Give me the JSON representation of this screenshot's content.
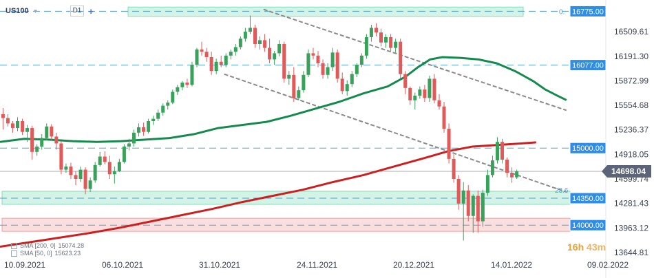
{
  "toolbar": {
    "symbol": "US100",
    "period": "D1"
  },
  "countdown": {
    "hours": "16",
    "hours_unit": "h",
    "minutes": "43",
    "minutes_unit": "m"
  },
  "legend": [
    {
      "label": "SMA [200, 0]",
      "value": "15074.28"
    },
    {
      "label": "SMA [50, 0]",
      "value": "15623.23"
    }
  ],
  "colors": {
    "bull": "#3aa15b",
    "bear": "#e05a5a",
    "sma200": "#cc1f1f",
    "sma50": "#158a4e",
    "channel": "#8a8a8a",
    "level_line": "#4f9fd8",
    "level_label_bg": "#2e8de6",
    "current_price_bg": "#5b6478",
    "zone_green": "#7fdcb8",
    "zone_red": "#f3a0a0",
    "fib": "#4f9fd8"
  },
  "chart_data": {
    "type": "candlestick",
    "y_ticks": [
      "16509.61",
      "16191.30",
      "15872.99",
      "15554.68",
      "15236.37",
      "14918.05",
      "14599.74",
      "14281.43",
      "13963.12",
      "13644.81"
    ],
    "x_ticks": [
      "10.09.2021",
      "06.10.2021",
      "31.10.2021",
      "24.11.2021",
      "20.12.2021",
      "14.01.2022",
      "09.02.2022"
    ],
    "ylim": [
      13600,
      16850
    ],
    "current_price": "14698.04",
    "fib_levels": [
      {
        "label": "0.",
        "price": 16775
      },
      {
        "label": "23.6",
        "price": 14455
      }
    ],
    "levels": [
      {
        "label": "16775.00",
        "price": 16775
      },
      {
        "label": "16077.00",
        "price": 16077
      },
      {
        "label": "15000.00",
        "price": 15000
      },
      {
        "label": "14350.00",
        "price": 14350
      },
      {
        "label": "14000.00",
        "price": 14000
      }
    ],
    "zones": [
      {
        "name": "resistance-zone",
        "from": 16710,
        "to": 16830,
        "color": "green"
      },
      {
        "name": "support-zone",
        "from": 14270,
        "to": 14440,
        "color": "green"
      },
      {
        "name": "demand-zone",
        "from": 13920,
        "to": 14090,
        "color": "red"
      }
    ],
    "channel": [
      {
        "x1": 0.435,
        "y1": 16800,
        "x2": 0.935,
        "y2": 15490
      },
      {
        "x1": 0.37,
        "y1": 15960,
        "x2": 0.935,
        "y2": 14430
      }
    ],
    "sma200": [
      [
        0,
        13720
      ],
      [
        0.05,
        13780
      ],
      [
        0.1,
        13840
      ],
      [
        0.15,
        13900
      ],
      [
        0.2,
        13970
      ],
      [
        0.25,
        14050
      ],
      [
        0.3,
        14130
      ],
      [
        0.35,
        14210
      ],
      [
        0.4,
        14300
      ],
      [
        0.45,
        14380
      ],
      [
        0.5,
        14460
      ],
      [
        0.55,
        14560
      ],
      [
        0.6,
        14650
      ],
      [
        0.65,
        14760
      ],
      [
        0.7,
        14870
      ],
      [
        0.74,
        14960
      ],
      [
        0.78,
        15020
      ],
      [
        0.82,
        15040
      ],
      [
        0.86,
        15060
      ],
      [
        0.885,
        15074
      ]
    ],
    "sma50": [
      [
        0,
        15080
      ],
      [
        0.04,
        15120
      ],
      [
        0.08,
        15110
      ],
      [
        0.12,
        15090
      ],
      [
        0.16,
        15080
      ],
      [
        0.2,
        15090
      ],
      [
        0.24,
        15110
      ],
      [
        0.28,
        15130
      ],
      [
        0.32,
        15180
      ],
      [
        0.36,
        15260
      ],
      [
        0.4,
        15300
      ],
      [
        0.44,
        15340
      ],
      [
        0.48,
        15420
      ],
      [
        0.52,
        15510
      ],
      [
        0.56,
        15600
      ],
      [
        0.6,
        15710
      ],
      [
        0.64,
        15800
      ],
      [
        0.67,
        15930
      ],
      [
        0.69,
        16050
      ],
      [
        0.71,
        16150
      ],
      [
        0.73,
        16180
      ],
      [
        0.76,
        16170
      ],
      [
        0.79,
        16150
      ],
      [
        0.82,
        16100
      ],
      [
        0.85,
        16000
      ],
      [
        0.88,
        15870
      ],
      [
        0.9,
        15760
      ],
      [
        0.92,
        15680
      ],
      [
        0.935,
        15623
      ]
    ],
    "candles": [
      [
        0.005,
        15440,
        15520,
        15240,
        15390
      ],
      [
        0.013,
        15390,
        15440,
        15280,
        15320
      ],
      [
        0.021,
        15320,
        15350,
        15200,
        15260
      ],
      [
        0.029,
        15260,
        15400,
        15220,
        15350
      ],
      [
        0.037,
        15350,
        15380,
        15170,
        15210
      ],
      [
        0.045,
        15210,
        15300,
        15080,
        15260
      ],
      [
        0.053,
        15260,
        15290,
        14850,
        14950
      ],
      [
        0.061,
        14950,
        15050,
        14900,
        15020
      ],
      [
        0.069,
        15020,
        15180,
        14980,
        15130
      ],
      [
        0.077,
        15130,
        15320,
        15100,
        15280
      ],
      [
        0.085,
        15280,
        15310,
        15100,
        15150
      ],
      [
        0.093,
        15150,
        15200,
        14980,
        15060
      ],
      [
        0.101,
        15060,
        15090,
        14660,
        14720
      ],
      [
        0.109,
        14720,
        14800,
        14680,
        14760
      ],
      [
        0.117,
        14760,
        14810,
        14600,
        14650
      ],
      [
        0.125,
        14650,
        14700,
        14520,
        14600
      ],
      [
        0.133,
        14600,
        14760,
        14560,
        14720
      ],
      [
        0.141,
        14720,
        14750,
        14400,
        14470
      ],
      [
        0.149,
        14470,
        14620,
        14430,
        14580
      ],
      [
        0.157,
        14580,
        14820,
        14550,
        14780
      ],
      [
        0.165,
        14780,
        14950,
        14760,
        14890
      ],
      [
        0.173,
        14890,
        14960,
        14790,
        14820
      ],
      [
        0.181,
        14820,
        14900,
        14600,
        14660
      ],
      [
        0.189,
        14660,
        14760,
        14540,
        14700
      ],
      [
        0.197,
        14700,
        14860,
        14690,
        14820
      ],
      [
        0.205,
        14820,
        15050,
        14800,
        15020
      ],
      [
        0.213,
        15020,
        15120,
        14970,
        15060
      ],
      [
        0.221,
        15060,
        15240,
        15020,
        15200
      ],
      [
        0.229,
        15200,
        15320,
        15150,
        15270
      ],
      [
        0.237,
        15270,
        15330,
        15160,
        15210
      ],
      [
        0.245,
        15210,
        15380,
        15190,
        15350
      ],
      [
        0.253,
        15350,
        15420,
        15300,
        15380
      ],
      [
        0.261,
        15380,
        15500,
        15350,
        15460
      ],
      [
        0.269,
        15460,
        15580,
        15420,
        15550
      ],
      [
        0.277,
        15550,
        15620,
        15500,
        15590
      ],
      [
        0.285,
        15590,
        15760,
        15570,
        15730
      ],
      [
        0.293,
        15730,
        15820,
        15690,
        15790
      ],
      [
        0.301,
        15790,
        15870,
        15750,
        15850
      ],
      [
        0.309,
        15850,
        15900,
        15780,
        15820
      ],
      [
        0.317,
        15820,
        16120,
        15800,
        16080
      ],
      [
        0.325,
        16080,
        16300,
        16050,
        16280
      ],
      [
        0.333,
        16280,
        16380,
        16200,
        16250
      ],
      [
        0.341,
        16250,
        16300,
        16120,
        16180
      ],
      [
        0.349,
        16180,
        16250,
        15950,
        16000
      ],
      [
        0.357,
        16000,
        16160,
        15960,
        16120
      ],
      [
        0.365,
        16120,
        16200,
        16050,
        16080
      ],
      [
        0.373,
        16080,
        16230,
        16050,
        16200
      ],
      [
        0.381,
        16200,
        16280,
        16150,
        16250
      ],
      [
        0.389,
        16250,
        16350,
        16200,
        16310
      ],
      [
        0.397,
        16310,
        16450,
        16280,
        16420
      ],
      [
        0.405,
        16420,
        16560,
        16380,
        16510
      ],
      [
        0.413,
        16510,
        16720,
        16480,
        16560
      ],
      [
        0.421,
        16560,
        16600,
        16300,
        16350
      ],
      [
        0.429,
        16350,
        16450,
        16280,
        16400
      ],
      [
        0.437,
        16400,
        16480,
        16250,
        16300
      ],
      [
        0.445,
        16300,
        16420,
        16100,
        16150
      ],
      [
        0.453,
        16150,
        16260,
        16080,
        16230
      ],
      [
        0.461,
        16230,
        16400,
        16190,
        16350
      ],
      [
        0.469,
        16350,
        16380,
        15850,
        15900
      ],
      [
        0.477,
        15900,
        16000,
        15820,
        15950
      ],
      [
        0.485,
        15950,
        16050,
        15600,
        15650
      ],
      [
        0.493,
        15650,
        15800,
        15620,
        15750
      ],
      [
        0.501,
        15750,
        16000,
        15720,
        15950
      ],
      [
        0.509,
        15950,
        16280,
        15920,
        16230
      ],
      [
        0.517,
        16230,
        16300,
        16150,
        16200
      ],
      [
        0.525,
        16200,
        16260,
        16050,
        16100
      ],
      [
        0.533,
        16100,
        16150,
        15900,
        15950
      ],
      [
        0.541,
        15950,
        16100,
        15900,
        16050
      ],
      [
        0.549,
        16050,
        16300,
        16000,
        16240
      ],
      [
        0.557,
        16240,
        16280,
        15850,
        15900
      ],
      [
        0.565,
        15900,
        15980,
        15700,
        15740
      ],
      [
        0.573,
        15740,
        15880,
        15680,
        15830
      ],
      [
        0.581,
        15830,
        16000,
        15790,
        15960
      ],
      [
        0.589,
        15960,
        16100,
        15920,
        16080
      ],
      [
        0.597,
        16080,
        16230,
        16050,
        16200
      ],
      [
        0.605,
        16200,
        16480,
        16160,
        16440
      ],
      [
        0.613,
        16440,
        16600,
        16380,
        16560
      ],
      [
        0.621,
        16560,
        16620,
        16450,
        16500
      ],
      [
        0.629,
        16500,
        16550,
        16320,
        16370
      ],
      [
        0.637,
        16370,
        16480,
        16300,
        16440
      ],
      [
        0.645,
        16440,
        16480,
        16260,
        16300
      ],
      [
        0.653,
        16300,
        16420,
        16240,
        16380
      ],
      [
        0.661,
        16380,
        16420,
        15900,
        15960
      ],
      [
        0.669,
        15960,
        16000,
        15700,
        15780
      ],
      [
        0.677,
        15780,
        15800,
        15560,
        15620
      ],
      [
        0.685,
        15620,
        15720,
        15500,
        15680
      ],
      [
        0.693,
        15680,
        15800,
        15640,
        15760
      ],
      [
        0.701,
        15760,
        15820,
        15600,
        15650
      ],
      [
        0.709,
        15650,
        15940,
        15600,
        15900
      ],
      [
        0.717,
        15900,
        15960,
        15580,
        15620
      ],
      [
        0.725,
        15620,
        15700,
        15500,
        15540
      ],
      [
        0.733,
        15540,
        15600,
        15200,
        15250
      ],
      [
        0.741,
        15250,
        15320,
        14800,
        14860
      ],
      [
        0.749,
        14860,
        14920,
        14550,
        14600
      ],
      [
        0.757,
        14600,
        14650,
        14200,
        14280
      ],
      [
        0.765,
        14280,
        14560,
        13800,
        14450
      ],
      [
        0.773,
        14450,
        14520,
        14050,
        14120
      ],
      [
        0.781,
        14120,
        14400,
        13900,
        14380
      ],
      [
        0.789,
        14380,
        14450,
        13900,
        14050
      ],
      [
        0.797,
        14050,
        14460,
        13980,
        14420
      ],
      [
        0.805,
        14420,
        14720,
        14380,
        14650
      ],
      [
        0.813,
        14650,
        14900,
        14620,
        14840
      ],
      [
        0.821,
        14840,
        15140,
        14800,
        15080
      ],
      [
        0.829,
        15080,
        15120,
        14800,
        14850
      ],
      [
        0.837,
        14850,
        14880,
        14620,
        14680
      ],
      [
        0.845,
        14680,
        14750,
        14550,
        14620
      ],
      [
        0.853,
        14620,
        14720,
        14600,
        14698
      ]
    ]
  }
}
